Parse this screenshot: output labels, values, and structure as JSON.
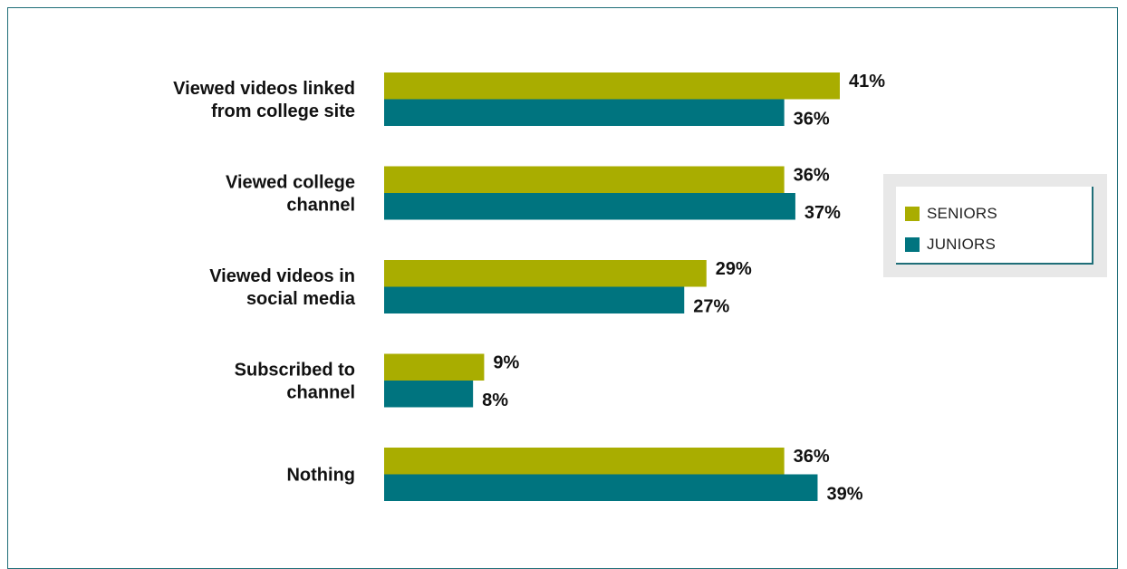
{
  "chart_data": {
    "type": "bar",
    "orientation": "horizontal",
    "categories": [
      [
        "Viewed videos linked",
        "from college site"
      ],
      [
        "Viewed college",
        "channel"
      ],
      [
        "Viewed videos in",
        "social media"
      ],
      [
        "Subscribed to",
        "channel"
      ],
      [
        "Nothing"
      ]
    ],
    "series": [
      {
        "name": "SENIORS",
        "values": [
          41,
          36,
          29,
          9,
          36
        ],
        "labels": [
          "41%",
          "36%",
          "29%",
          "9%",
          "36%"
        ],
        "color": "#a9ad00"
      },
      {
        "name": "JUNIORS",
        "values": [
          36,
          37,
          27,
          8,
          39
        ],
        "labels": [
          "36%",
          "37%",
          "27%",
          "8%",
          "39%"
        ],
        "color": "#00747f"
      }
    ],
    "xlim": [
      0,
      41
    ],
    "grid": false,
    "legend_position": "right"
  },
  "colors": {
    "border": "#1f6e78",
    "legend_bg": "#e8e8e8"
  }
}
